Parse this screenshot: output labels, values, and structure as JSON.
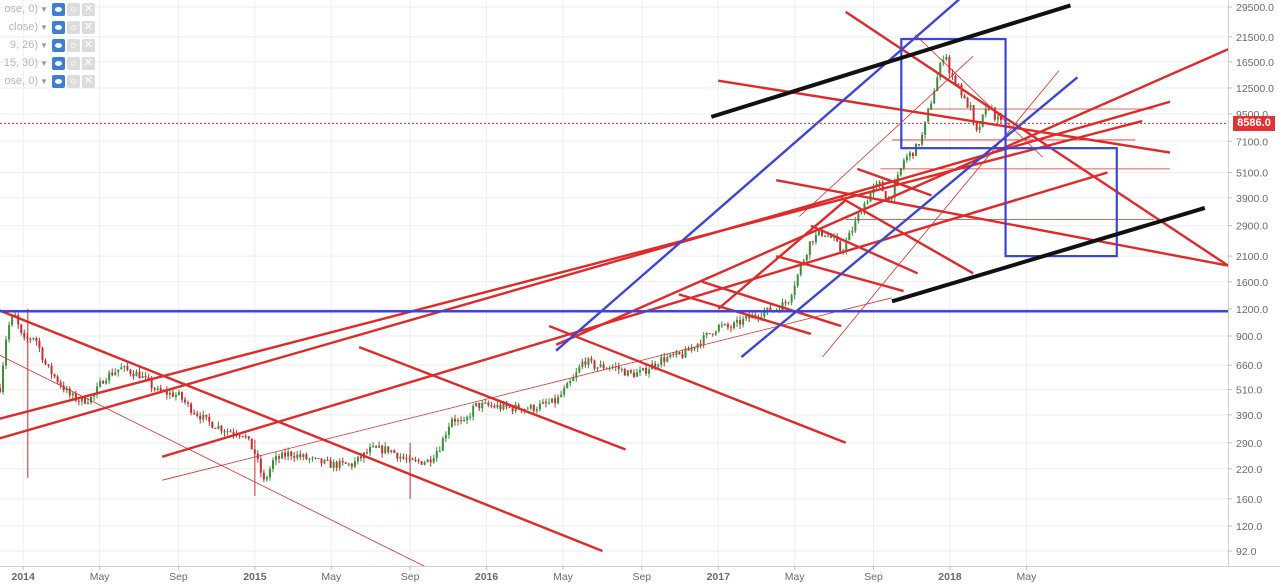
{
  "indicators": [
    {
      "label": "ose, 0)"
    },
    {
      "label": "close)"
    },
    {
      "label": "9, 26)"
    },
    {
      "label": "15, 30)"
    },
    {
      "label": "ose, 0)"
    }
  ],
  "price_label": "8586.0",
  "colors": {
    "background": "#ffffff",
    "grid": "#eeeeee",
    "axis_text": "#6a6a6a",
    "red_line": "#e02a2a",
    "blue_line": "#3c46d2",
    "black_line": "#111111",
    "candle_up": "#3a8f3a",
    "candle_down": "#c43030",
    "price_tag": "#e23333"
  },
  "chart_data": {
    "type": "candlestick",
    "y_scale": "log",
    "y_ticks": [
      92.0,
      120.0,
      160.0,
      220.0,
      290.0,
      390.0,
      510.0,
      660.0,
      900.0,
      1200.0,
      1600.0,
      2100.0,
      2900.0,
      3900.0,
      5100.0,
      7100.0,
      9500.0,
      12500.0,
      16500.0,
      21500.0,
      29500.0
    ],
    "y_tick_labels": [
      "92.0",
      "120.0",
      "160.0",
      "220.0",
      "290.0",
      "390.0",
      "510.0",
      "660.0",
      "900.0",
      "1200.0",
      "1600.0",
      "2100.0",
      "2900.0",
      "3900.0",
      "5100.0",
      "7100.0",
      "9500.0",
      "12500.0",
      "16500.0",
      "21500.0",
      "29500.0"
    ],
    "x_ticks": [
      {
        "t": 2014.0,
        "label": "2014",
        "bold": true
      },
      {
        "t": 2014.33,
        "label": "May",
        "bold": false
      },
      {
        "t": 2014.67,
        "label": "Sep",
        "bold": false
      },
      {
        "t": 2015.0,
        "label": "2015",
        "bold": true
      },
      {
        "t": 2015.33,
        "label": "May",
        "bold": false
      },
      {
        "t": 2015.67,
        "label": "Sep",
        "bold": false
      },
      {
        "t": 2016.0,
        "label": "2016",
        "bold": true
      },
      {
        "t": 2016.33,
        "label": "May",
        "bold": false
      },
      {
        "t": 2016.67,
        "label": "Sep",
        "bold": false
      },
      {
        "t": 2017.0,
        "label": "2017",
        "bold": true
      },
      {
        "t": 2017.33,
        "label": "May",
        "bold": false
      },
      {
        "t": 2017.67,
        "label": "Sep",
        "bold": false
      },
      {
        "t": 2018.0,
        "label": "2018",
        "bold": true
      },
      {
        "t": 2018.33,
        "label": "May",
        "bold": false
      }
    ],
    "price_path": [
      [
        2013.9,
        520
      ],
      [
        2013.93,
        950
      ],
      [
        2013.96,
        1150
      ],
      [
        2014.0,
        850
      ],
      [
        2014.05,
        900
      ],
      [
        2014.1,
        650
      ],
      [
        2014.15,
        560
      ],
      [
        2014.2,
        480
      ],
      [
        2014.25,
        450
      ],
      [
        2014.3,
        470
      ],
      [
        2014.35,
        580
      ],
      [
        2014.42,
        640
      ],
      [
        2014.5,
        600
      ],
      [
        2014.58,
        500
      ],
      [
        2014.67,
        480
      ],
      [
        2014.72,
        420
      ],
      [
        2014.8,
        360
      ],
      [
        2014.88,
        330
      ],
      [
        2014.95,
        320
      ],
      [
        2015.0,
        260
      ],
      [
        2015.04,
        190
      ],
      [
        2015.08,
        240
      ],
      [
        2015.15,
        260
      ],
      [
        2015.25,
        240
      ],
      [
        2015.33,
        230
      ],
      [
        2015.42,
        230
      ],
      [
        2015.5,
        270
      ],
      [
        2015.58,
        270
      ],
      [
        2015.67,
        235
      ],
      [
        2015.75,
        240
      ],
      [
        2015.8,
        280
      ],
      [
        2015.85,
        380
      ],
      [
        2015.9,
        350
      ],
      [
        2015.95,
        430
      ],
      [
        2016.0,
        430
      ],
      [
        2016.1,
        420
      ],
      [
        2016.2,
        420
      ],
      [
        2016.3,
        450
      ],
      [
        2016.38,
        580
      ],
      [
        2016.42,
        700
      ],
      [
        2016.47,
        650
      ],
      [
        2016.55,
        650
      ],
      [
        2016.62,
        600
      ],
      [
        2016.67,
        610
      ],
      [
        2016.75,
        700
      ],
      [
        2016.85,
        740
      ],
      [
        2016.95,
        900
      ],
      [
        2017.0,
        1000
      ],
      [
        2017.05,
        980
      ],
      [
        2017.1,
        1050
      ],
      [
        2017.18,
        1150
      ],
      [
        2017.25,
        1200
      ],
      [
        2017.3,
        1300
      ],
      [
        2017.35,
        1800
      ],
      [
        2017.4,
        2500
      ],
      [
        2017.45,
        2700
      ],
      [
        2017.5,
        2500
      ],
      [
        2017.53,
        2200
      ],
      [
        2017.58,
        2800
      ],
      [
        2017.62,
        3500
      ],
      [
        2017.67,
        4300
      ],
      [
        2017.7,
        4500
      ],
      [
        2017.73,
        3700
      ],
      [
        2017.77,
        4600
      ],
      [
        2017.8,
        5800
      ],
      [
        2017.85,
        6500
      ],
      [
        2017.88,
        7500
      ],
      [
        2017.92,
        11000
      ],
      [
        2017.96,
        16000
      ],
      [
        2017.98,
        19000
      ],
      [
        2018.0,
        14000
      ],
      [
        2018.03,
        13500
      ],
      [
        2018.06,
        11000
      ],
      [
        2018.09,
        10000
      ],
      [
        2018.11,
        7500
      ],
      [
        2018.14,
        9000
      ],
      [
        2018.17,
        10500
      ],
      [
        2018.2,
        9000
      ],
      [
        2018.22,
        8586
      ]
    ],
    "current_price": 8586.0
  },
  "overlays": {
    "red_thick": [
      [
        [
          2013.88,
          300
        ],
        [
          2018.95,
          10800
        ]
      ],
      [
        [
          2013.88,
          370
        ],
        [
          2018.83,
          8800
        ]
      ],
      [
        [
          2014.6,
          250
        ],
        [
          2018.68,
          5100
        ]
      ],
      [
        [
          2016.3,
          820
        ],
        [
          2019.85,
          38000
        ]
      ],
      [
        [
          2013.88,
          1200
        ],
        [
          2016.5,
          92
        ]
      ],
      [
        [
          2015.45,
          800
        ],
        [
          2016.6,
          270
        ]
      ],
      [
        [
          2016.27,
          1000
        ],
        [
          2017.55,
          290
        ]
      ],
      [
        [
          2017.0,
          13500
        ],
        [
          2018.95,
          6300
        ]
      ],
      [
        [
          2017.55,
          28000
        ],
        [
          2019.2,
          1900
        ]
      ],
      [
        [
          2017.25,
          4700
        ],
        [
          2019.2,
          1900
        ]
      ],
      [
        [
          2016.83,
          1400
        ],
        [
          2017.4,
          920
        ]
      ],
      [
        [
          2016.93,
          1600
        ],
        [
          2017.53,
          1000
        ]
      ],
      [
        [
          2017.0,
          1200
        ],
        [
          2017.55,
          3800
        ]
      ],
      [
        [
          2017.25,
          2100
        ],
        [
          2017.8,
          1450
        ]
      ],
      [
        [
          2017.4,
          2900
        ],
        [
          2017.86,
          1750
        ]
      ],
      [
        [
          2017.53,
          3900
        ],
        [
          2018.1,
          1750
        ]
      ],
      [
        [
          2017.6,
          5300
        ],
        [
          2017.92,
          4000
        ]
      ]
    ],
    "red_thin": [
      [
        [
          2014.6,
          195
        ],
        [
          2017.75,
          1350
        ]
      ],
      [
        [
          2013.88,
          750
        ],
        [
          2015.95,
          60
        ]
      ],
      [
        [
          2017.75,
          7200
        ],
        [
          2018.8,
          7200
        ]
      ],
      [
        [
          2017.55,
          3100
        ],
        [
          2018.88,
          3100
        ]
      ],
      [
        [
          2017.7,
          5300
        ],
        [
          2018.95,
          5300
        ]
      ],
      [
        [
          2017.35,
          3200
        ],
        [
          2018.1,
          17500
        ]
      ],
      [
        [
          2017.45,
          720
        ],
        [
          2018.47,
          15000
        ]
      ],
      [
        [
          2017.9,
          10000
        ],
        [
          2018.88,
          10000
        ]
      ],
      [
        [
          2017.85,
          22000
        ],
        [
          2018.4,
          6000
        ]
      ]
    ],
    "blue_thick": [
      [
        [
          2016.3,
          770
        ],
        [
          2018.04,
          32000
        ]
      ],
      [
        [
          2017.1,
          720
        ],
        [
          2018.55,
          14000
        ]
      ],
      [
        [
          2013.88,
          1170
        ],
        [
          2019.27,
          1170
        ]
      ]
    ],
    "black_thick": [
      [
        [
          2016.97,
          9200
        ],
        [
          2018.52,
          30000
        ]
      ],
      [
        [
          2017.75,
          1300
        ],
        [
          2019.1,
          3500
        ]
      ]
    ],
    "blue_boxes": [
      [
        [
          2017.79,
          21000
        ],
        [
          2018.24,
          6600
        ]
      ],
      [
        [
          2018.24,
          6600
        ],
        [
          2018.72,
          2100
        ]
      ]
    ]
  }
}
